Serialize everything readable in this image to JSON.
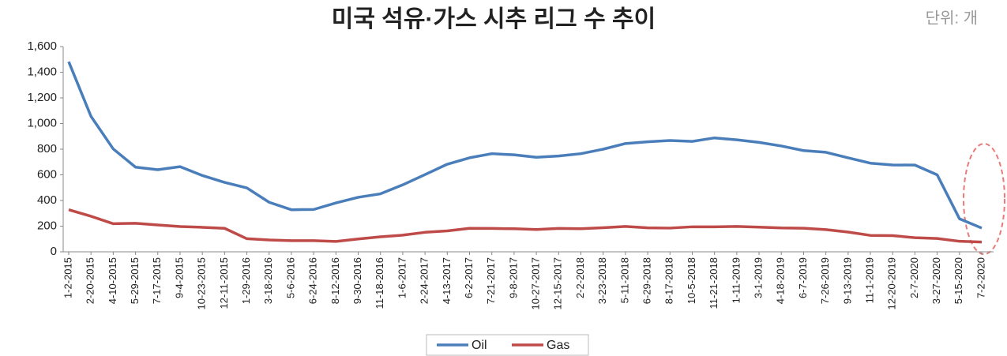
{
  "chart_data": {
    "type": "line",
    "title": "미국 석유·가스 시추 리그 수 추이",
    "unit_note": "단위: 개",
    "categories": [
      "1-2-2015",
      "2-20-2015",
      "4-10-2015",
      "5-29-2015",
      "7-17-2015",
      "9-4-2015",
      "10-23-2015",
      "12-11-2015",
      "1-29-2016",
      "3-18-2016",
      "5-6-2016",
      "6-24-2016",
      "8-12-2016",
      "9-30-2016",
      "11-18-2016",
      "1-6-2017",
      "2-24-2017",
      "4-13-2017",
      "6-2-2017",
      "7-21-2017",
      "9-8-2017",
      "10-27-2017",
      "12-15-2017",
      "2-2-2018",
      "3-23-2018",
      "5-11-2018",
      "6-29-2018",
      "8-17-2018",
      "10-5-2018",
      "11-21-2018",
      "1-11-2019",
      "3-1-2019",
      "4-18-2019",
      "6-7-2019",
      "7-26-2019",
      "9-13-2019",
      "11-1-2019",
      "12-20-2019",
      "2-7-2020",
      "3-27-2020",
      "5-15-2020",
      "7-2-2020"
    ],
    "series": [
      {
        "name": "Oil",
        "color": "#4a7ebb",
        "values": [
          1482,
          1056,
          802,
          660,
          640,
          664,
          595,
          541,
          498,
          386,
          328,
          330,
          381,
          425,
          452,
          522,
          602,
          683,
          733,
          765,
          756,
          737,
          747,
          765,
          800,
          844,
          858,
          868,
          861,
          888,
          873,
          853,
          825,
          789,
          776,
          733,
          691,
          677,
          676,
          600,
          258,
          185
        ]
      },
      {
        "name": "Gas",
        "color": "#be4b48",
        "values": [
          328,
          277,
          219,
          222,
          209,
          197,
          191,
          183,
          102,
          92,
          87,
          87,
          81,
          100,
          117,
          130,
          152,
          163,
          183,
          182,
          180,
          174,
          182,
          180,
          188,
          198,
          187,
          185,
          195,
          195,
          198,
          192,
          186,
          184,
          173,
          154,
          128,
          126,
          110,
          104,
          82,
          76
        ]
      }
    ],
    "ylim": [
      0,
      1600
    ],
    "yticks": [
      0,
      200,
      400,
      600,
      800,
      {
        "value": 1000,
        "label": "1,000"
      },
      {
        "value": 1200,
        "label": "1,200"
      },
      {
        "value": 1400,
        "label": "1,400"
      },
      {
        "value": 1600,
        "label": "1,600"
      }
    ],
    "grid": false,
    "legend": "bottom"
  }
}
